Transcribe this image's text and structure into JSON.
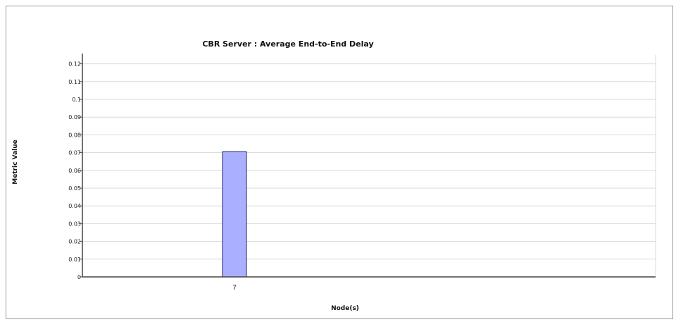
{
  "chart_data": {
    "type": "bar",
    "title": "CBR Server :  Average End-to-End Delay",
    "xlabel": "Node(s)",
    "ylabel": "Metric Value",
    "categories": [
      "7"
    ],
    "values": [
      0.0705
    ],
    "ylim": [
      0,
      0.125
    ],
    "yticks": [
      "0",
      "0.01",
      "0.02",
      "0.03",
      "0.04",
      "0.05",
      "0.06",
      "0.07",
      "0.08",
      "0.09",
      "0.1",
      "0.11",
      "0.12"
    ],
    "grid": true,
    "legend": "none",
    "colors": {
      "bar": "#aab0ff",
      "bar_stroke": "#1a1f6e",
      "grid": "#d8d8d8",
      "axis": "#444444"
    }
  }
}
